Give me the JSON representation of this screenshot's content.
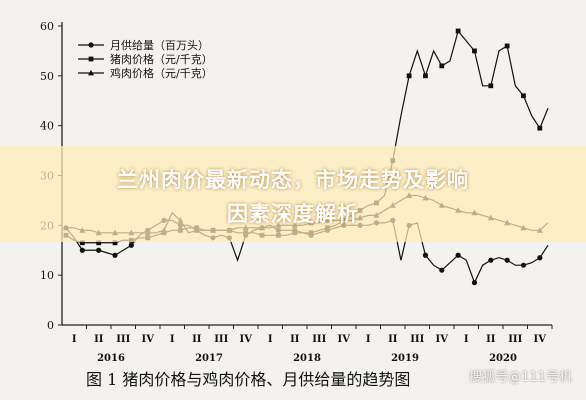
{
  "banner": {
    "line1": "兰州肉价最新动态，市场走势及影响",
    "line2": "因素深度解析"
  },
  "caption": "图 1  猪肉价格与鸡肉价格、月供给量的趋势图",
  "watermark": "搜狐号@111号机",
  "chart_data": {
    "type": "line",
    "title": "",
    "xlabel": "",
    "ylabel": "",
    "ylim": [
      0,
      60
    ],
    "yticks": [
      0,
      10,
      20,
      30,
      40,
      50,
      60
    ],
    "quarter_labels": [
      "I",
      "II",
      "III",
      "IV",
      "I",
      "II",
      "III",
      "IV",
      "I",
      "II",
      "III",
      "IV",
      "I",
      "II",
      "III",
      "IV",
      "I",
      "II",
      "III",
      "IV"
    ],
    "year_labels": [
      "2016",
      "2017",
      "2018",
      "2019",
      "2020"
    ],
    "x": [
      1,
      2,
      3,
      4,
      5,
      6,
      7,
      8,
      9,
      10,
      11,
      12,
      13,
      14,
      15,
      16,
      17,
      18,
      19,
      20,
      21,
      22,
      23,
      24,
      25,
      26,
      27,
      28,
      29,
      30,
      31,
      32,
      33,
      34,
      35,
      36,
      37,
      38,
      39,
      40,
      41,
      42,
      43,
      44,
      45,
      46,
      47,
      48,
      49,
      50,
      51,
      52,
      53,
      54,
      55,
      56,
      57,
      58,
      59,
      60
    ],
    "legend": "top-left",
    "series": [
      {
        "name": "月供给量（百万头）",
        "marker": "circle",
        "values": [
          19.5,
          17.5,
          15,
          15,
          15,
          14.5,
          14,
          15,
          16,
          18,
          19,
          20,
          21,
          21,
          20,
          20,
          19,
          18,
          17.5,
          18,
          17.5,
          13,
          18,
          19,
          19.5,
          20,
          19,
          19,
          19,
          18.5,
          18,
          18.5,
          19,
          19.5,
          20,
          20,
          20,
          20,
          20.5,
          20.5,
          21,
          13,
          20,
          20.5,
          14,
          12,
          11,
          12.5,
          14,
          13,
          8.5,
          12,
          13,
          13.5,
          13,
          12,
          12,
          12.5,
          13.5,
          16
        ]
      },
      {
        "name": "猪肉价格（元/千克）",
        "marker": "square",
        "values": [
          18,
          17,
          16.5,
          16.5,
          16.5,
          16.5,
          16.5,
          17,
          17,
          17.5,
          17.5,
          18,
          18.5,
          19,
          19,
          19.5,
          19.5,
          19,
          19,
          19,
          19,
          18.5,
          18.5,
          18.5,
          18,
          18,
          18,
          18,
          18.5,
          18.5,
          18.5,
          19,
          19.5,
          20,
          21,
          22,
          23,
          24,
          24.5,
          26,
          33,
          42,
          50,
          55,
          50,
          55,
          52,
          53,
          59,
          57,
          55,
          48,
          48,
          55,
          56,
          48,
          46,
          42,
          39.5,
          43.5
        ]
      },
      {
        "name": "鸡肉价格（元/千克）",
        "marker": "triangle",
        "values": [
          19.5,
          19.5,
          19,
          19,
          18.5,
          18.5,
          18.5,
          18.5,
          18.5,
          18.5,
          18.5,
          18.5,
          19,
          22.5,
          21,
          18.5,
          19,
          19,
          19,
          19,
          19,
          19.5,
          19.5,
          19.5,
          19.5,
          19.5,
          20,
          20,
          20,
          20,
          20.5,
          20.5,
          21,
          21,
          21,
          21,
          21.5,
          22,
          22,
          23,
          24,
          25,
          26,
          26,
          25.5,
          25,
          24,
          23.5,
          23,
          22.5,
          22.5,
          22,
          21.5,
          21,
          20.5,
          20,
          19.5,
          19,
          19,
          20.5
        ]
      }
    ]
  }
}
